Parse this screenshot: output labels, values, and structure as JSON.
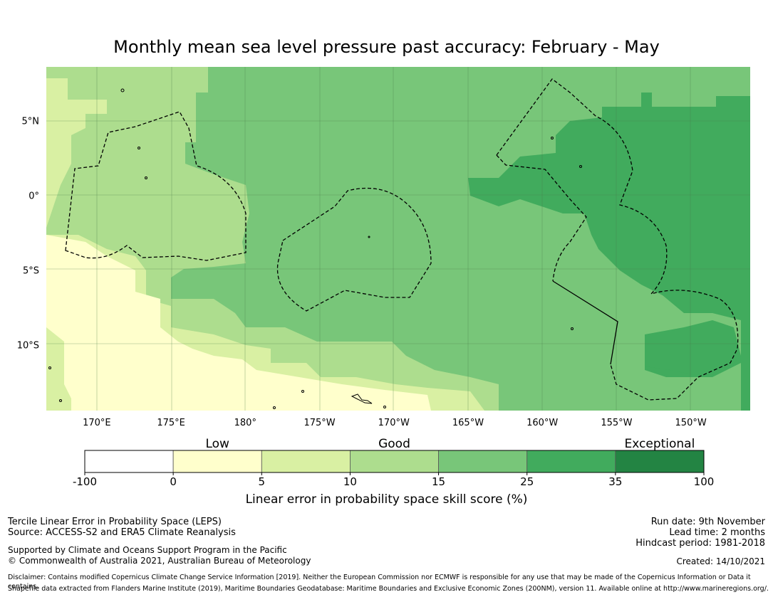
{
  "title": "Monthly mean sea level pressure past accuracy: February - May",
  "map": {
    "lat_ticks": [
      {
        "lat": 5,
        "label": "5°N"
      },
      {
        "lat": 0,
        "label": "0°"
      },
      {
        "lat": -5,
        "label": "5°S"
      },
      {
        "lat": -10,
        "label": "10°S"
      }
    ],
    "lon_ticks": [
      {
        "lon": 170,
        "label": "170°E"
      },
      {
        "lon": 175,
        "label": "175°E"
      },
      {
        "lon": 180,
        "label": "180°"
      },
      {
        "lon": 185,
        "label": "175°W"
      },
      {
        "lon": 190,
        "label": "170°W"
      },
      {
        "lon": 195,
        "label": "165°W"
      },
      {
        "lon": 200,
        "label": "160°W"
      },
      {
        "lon": 205,
        "label": "155°W"
      },
      {
        "lon": 210,
        "label": "150°W"
      }
    ],
    "extent": {
      "lon_min": 166.6,
      "lon_max": 214.0,
      "lat_min": -14.4,
      "lat_max": 8.6
    }
  },
  "colorbar": {
    "ticks": [
      "-100",
      "0",
      "5",
      "10",
      "15",
      "25",
      "35",
      "100"
    ],
    "colors": [
      "#ffffff",
      "#ffffcc",
      "#d9f0a3",
      "#addd8e",
      "#78c679",
      "#41ab5d",
      "#238443"
    ],
    "categories": [
      {
        "label": "Low",
        "bin": 1
      },
      {
        "label": "Good",
        "bin": 3
      },
      {
        "label": "Exceptional",
        "bin": 6
      }
    ],
    "label": "Linear error in probability space skill score (%)"
  },
  "footer": {
    "left_line1": "Tercile Linear Error in Probability Space (LEPS)",
    "left_line2": "Source: ACCESS-S2 and ERA5 Climate Reanalysis",
    "left_line3": "Supported by Climate and Oceans Support Program in the Pacific",
    "left_line4": "© Commonwealth of Australia 2021, Australian Bureau of Meteorology",
    "run_date": "Run date: 9th November",
    "lead_time": "Lead time: 2 months",
    "hindcast": "Hindcast period: 1981-2018",
    "created": "Created: 14/10/2021",
    "disclaimer": "Disclaimer: Contains modified Copernicus Climate Change Service Information [2019]. Neither the European Commission nor ECMWF is responsible for any use that may be made of the Copernicus Information or Data it contains.",
    "shapefile": "Shapefile data extracted from Flanders Marine Institute (2019), Maritime Boundaries Geodatabase: Maritime Boundaries and Exclusive Economic Zones (200NM), version 11. Available online at http://www.marineregions.org/."
  }
}
